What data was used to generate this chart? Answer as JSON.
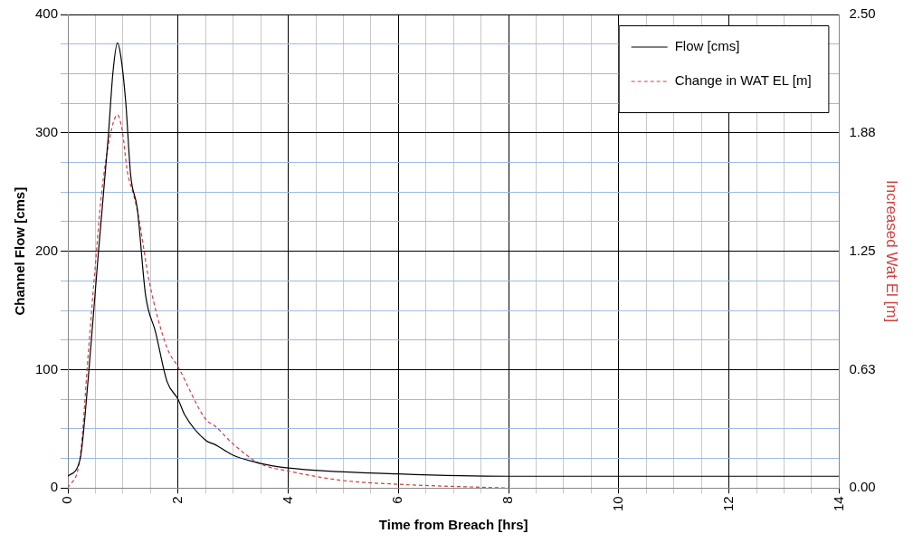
{
  "chart_data": {
    "type": "line",
    "xlabel": "Time from Breach [hrs]",
    "ylabel": "Channel Flow [cms]",
    "y2label": "Increased Wat El [m]",
    "xlim": [
      0,
      14
    ],
    "xticks": [
      0,
      {
        "value": 0.5,
        "label": null
      },
      {
        "value": 1,
        "label": null
      },
      {
        "value": 1.5,
        "label": null
      },
      2,
      {
        "value": 2.5,
        "label": null
      },
      {
        "value": 3,
        "label": null
      },
      {
        "value": 3.5,
        "label": null
      },
      4,
      {
        "value": 4.5,
        "label": null
      },
      {
        "value": 5,
        "label": null
      },
      {
        "value": 5.5,
        "label": null
      },
      6,
      {
        "value": 6.5,
        "label": null
      },
      {
        "value": 7,
        "label": null
      },
      {
        "value": 7.5,
        "label": null
      },
      8,
      {
        "value": 8.5,
        "label": null
      },
      {
        "value": 9,
        "label": null
      },
      {
        "value": 9.5,
        "label": null
      },
      10,
      {
        "value": 10.5,
        "label": null
      },
      {
        "value": 11,
        "label": null
      },
      {
        "value": 11.5,
        "label": null
      },
      12,
      {
        "value": 12.5,
        "label": null
      },
      {
        "value": 13,
        "label": null
      },
      {
        "value": 13.5,
        "label": null
      },
      14
    ],
    "ylim": [
      0,
      400
    ],
    "yticks": [
      0,
      {
        "value": 25,
        "label": null
      },
      {
        "value": 50,
        "label": null
      },
      {
        "value": 75,
        "label": null
      },
      100,
      {
        "value": 125,
        "label": null
      },
      {
        "value": 150,
        "label": null
      },
      {
        "value": 175,
        "label": null
      },
      200,
      {
        "value": 225,
        "label": null
      },
      {
        "value": 250,
        "label": null
      },
      {
        "value": 275,
        "label": null
      },
      300,
      {
        "value": 325,
        "label": null
      },
      {
        "value": 350,
        "label": null
      },
      {
        "value": 375,
        "label": null
      },
      400
    ],
    "y2lim": [
      0,
      2.5
    ],
    "y2ticks": [
      {
        "value": 0,
        "label": "0.00"
      },
      {
        "value": 0.625,
        "label": "0.63"
      },
      {
        "value": 1.25,
        "label": "1.25"
      },
      {
        "value": 1.875,
        "label": "1.88"
      },
      {
        "value": 2.5,
        "label": "2.50"
      }
    ],
    "grid": true,
    "legend": "top right",
    "marker": "none",
    "series": [
      {
        "name": "Flow [cms]",
        "color": "#000000",
        "line_style": "solid",
        "x": [
          0,
          0.22,
          0.37,
          0.55,
          0.73,
          0.82,
          0.9,
          0.96,
          1.05,
          1.14,
          1.26,
          1.41,
          1.59,
          1.8,
          2.0,
          2.12,
          2.51,
          2.66,
          2.99,
          3.48,
          4.0,
          6.0,
          8.0,
          14.0
        ],
        "values": [
          10,
          24,
          93,
          197,
          295,
          352,
          376,
          365,
          326,
          264,
          236,
          163,
          132,
          90,
          75,
          62,
          40,
          37,
          28,
          21,
          17,
          12,
          10,
          10
        ]
      },
      {
        "name": "Change in WAT EL [m]",
        "color": "#d04040",
        "line_style": "dashed",
        "axis": "y2",
        "x": [
          0,
          0.22,
          0.37,
          0.49,
          0.61,
          0.76,
          0.9,
          0.99,
          1.08,
          1.2,
          1.29,
          1.47,
          1.8,
          2.0,
          2.51,
          2.66,
          3.01,
          3.48,
          4.0,
          4.99,
          6.0,
          8.0
        ],
        "values": [
          0,
          0.16,
          0.71,
          1.15,
          1.55,
          1.85,
          1.97,
          1.88,
          1.67,
          1.54,
          1.42,
          1.1,
          0.74,
          0.64,
          0.36,
          0.33,
          0.23,
          0.13,
          0.09,
          0.04,
          0.02,
          0
        ]
      }
    ]
  }
}
